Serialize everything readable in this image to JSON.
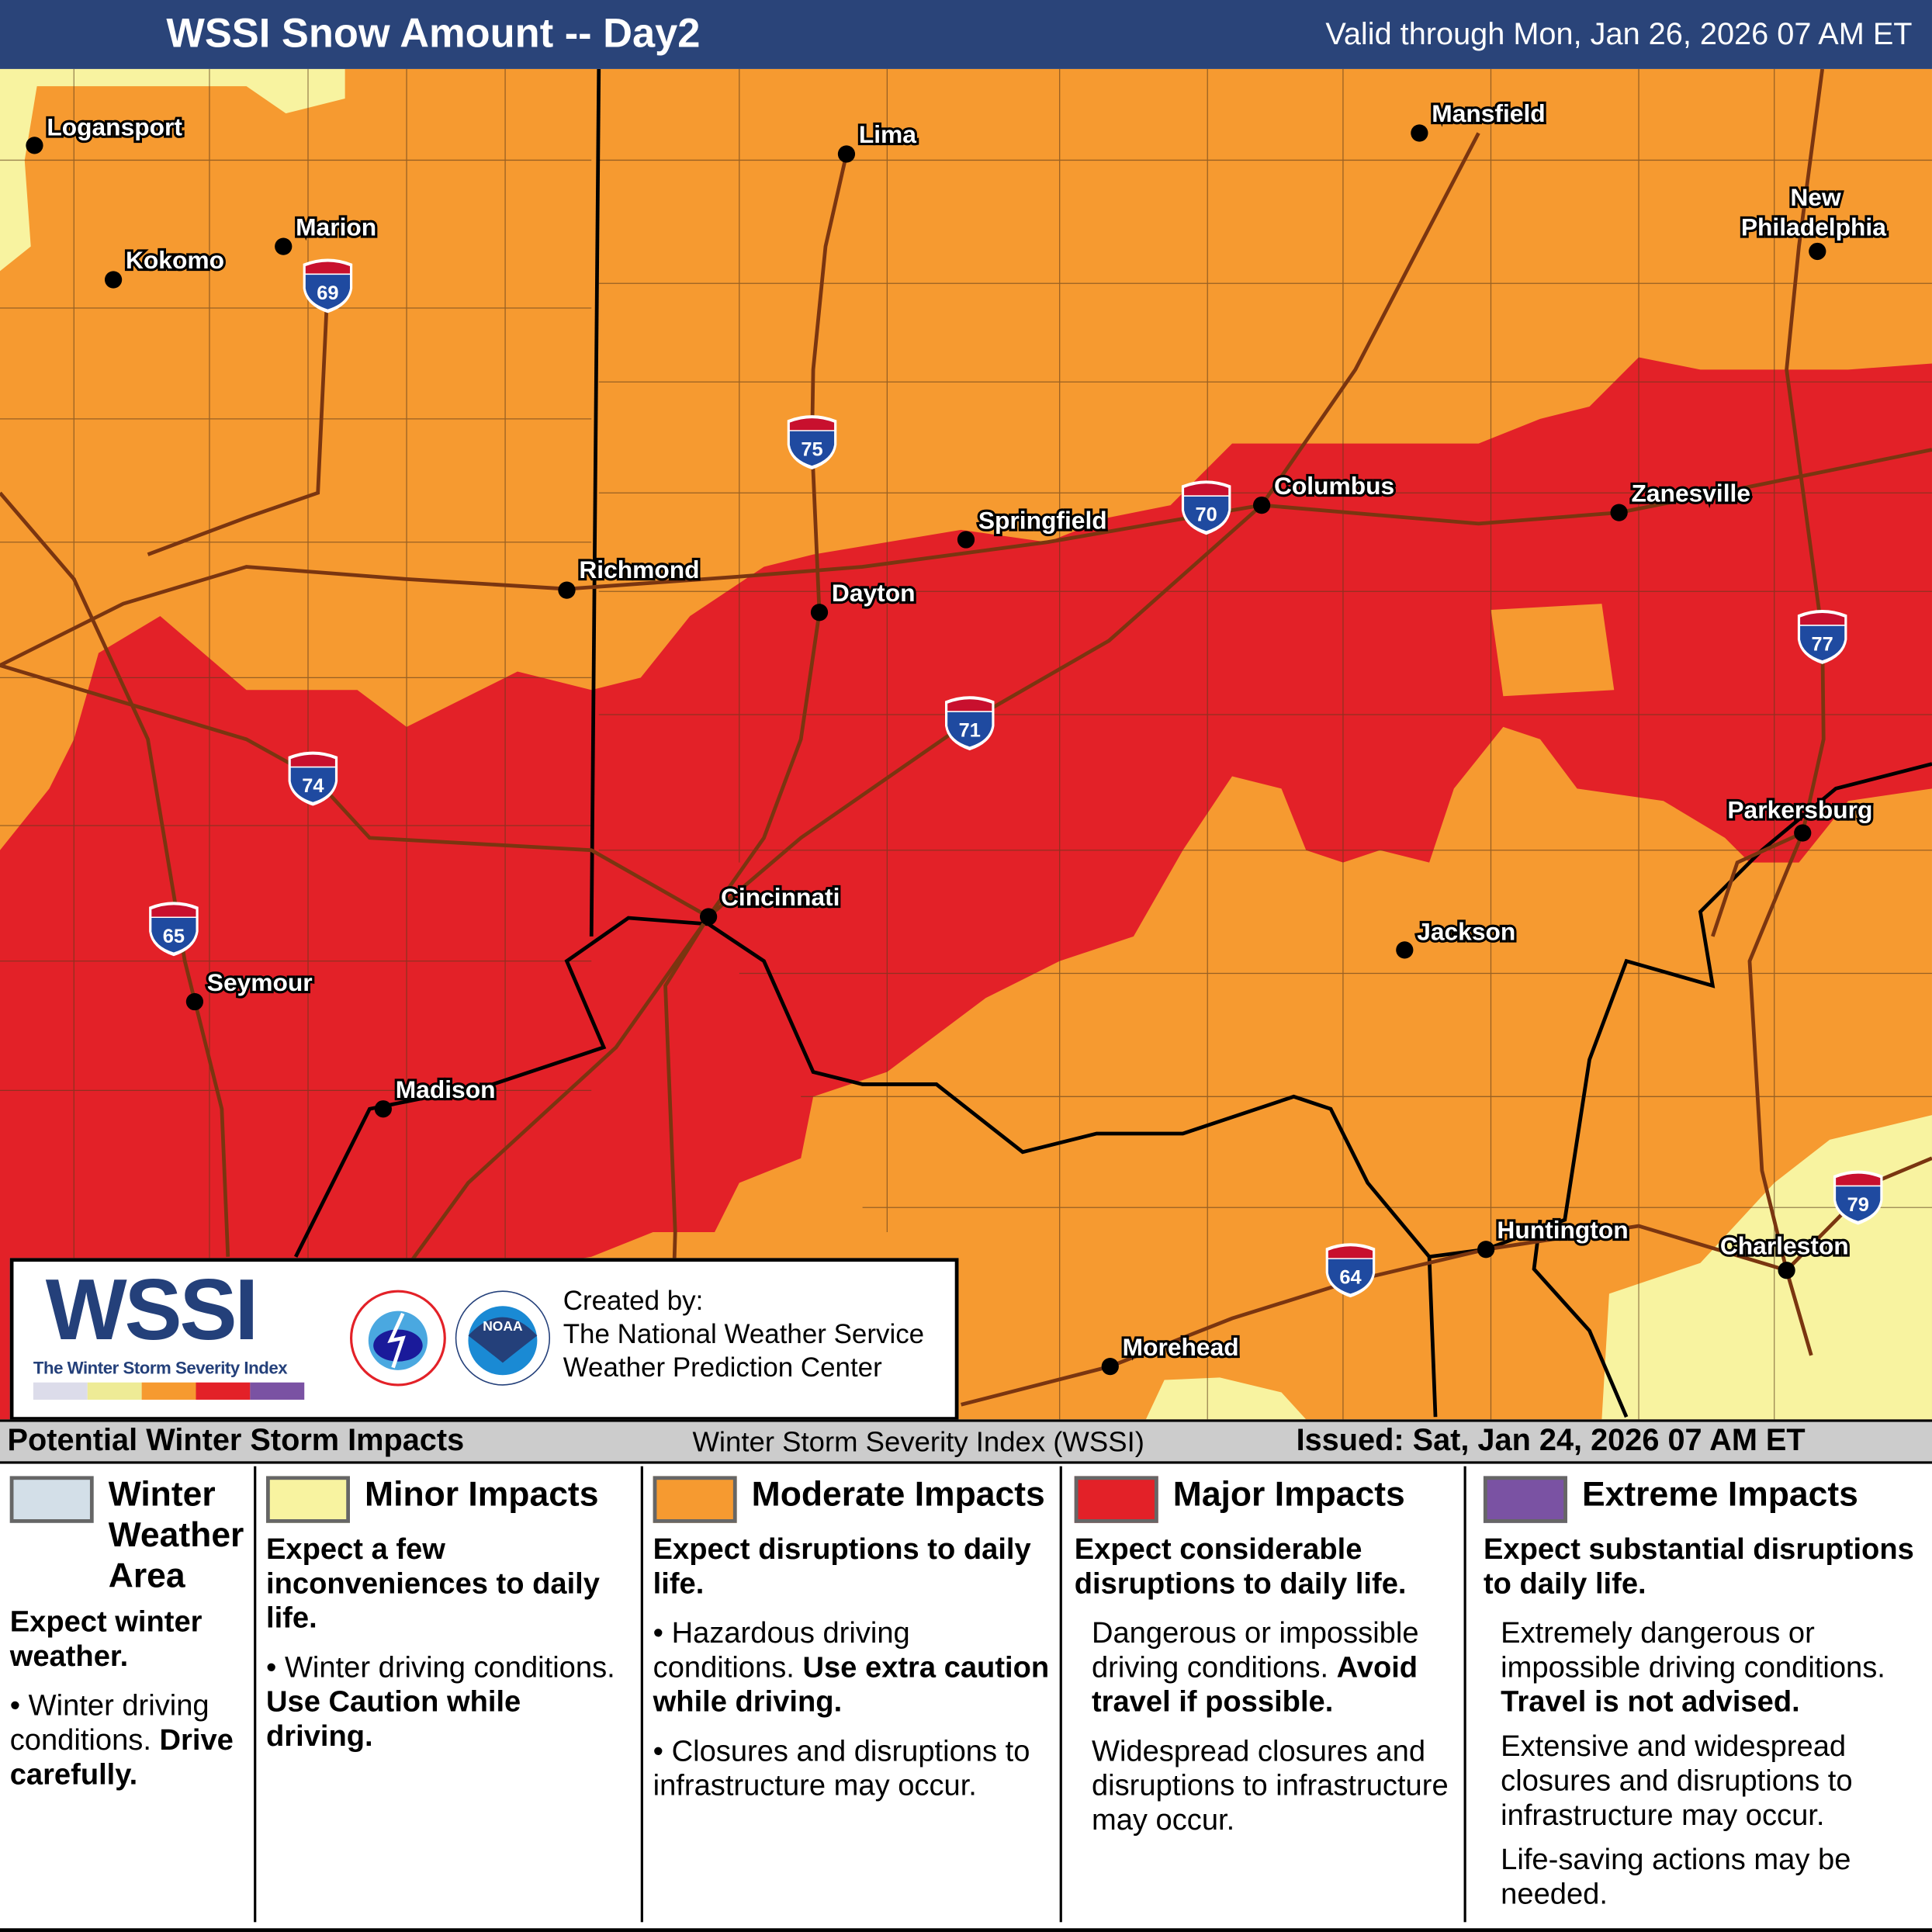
{
  "header": {
    "title": "WSSI Snow Amount -- Day2",
    "valid": "Valid through Mon, Jan 26, 2026 07 AM ET"
  },
  "colors": {
    "winter_weather": "#d3dfe8",
    "minor": "#f8f3a0",
    "moderate": "#f69a30",
    "major": "#e32128",
    "extreme": "#7a52a3",
    "road": "#7a3510",
    "header": "#2a4479"
  },
  "cities": [
    {
      "name": "Logansport"
    },
    {
      "name": "Kokomo"
    },
    {
      "name": "Marion"
    },
    {
      "name": "Lima"
    },
    {
      "name": "Mansfield"
    },
    {
      "name": "New Philadelphia"
    },
    {
      "name": "Columbus"
    },
    {
      "name": "Springfield"
    },
    {
      "name": "Zanesville"
    },
    {
      "name": "Richmond"
    },
    {
      "name": "Dayton"
    },
    {
      "name": "Cincinnati"
    },
    {
      "name": "Parkersburg"
    },
    {
      "name": "Jackson"
    },
    {
      "name": "Seymour"
    },
    {
      "name": "Madison"
    },
    {
      "name": "Huntington"
    },
    {
      "name": "Charleston"
    },
    {
      "name": "Morehead"
    }
  ],
  "interstates": [
    "69",
    "75",
    "70",
    "77",
    "71",
    "74",
    "65",
    "64",
    "79"
  ],
  "logo": {
    "wordmark": "WSSI",
    "tagline": "The Winter Storm Severity Index",
    "nws_seal": "NATIONAL WEATHER SERVICE",
    "noaa_seal": "NOAA",
    "created_by": "Created by:",
    "org1": "The National Weather Service",
    "org2": "Weather Prediction Center"
  },
  "bar": {
    "left": "Potential Winter Storm Impacts",
    "mid": "Winter Storm Severity Index (WSSI)",
    "right": "Issued: Sat, Jan 24, 2026 07 AM ET"
  },
  "legend": {
    "winter": {
      "title": "Winter Weather Area",
      "headline": "Expect winter weather.",
      "b1": "Winter driving conditions.",
      "b1_bold": "Drive carefully."
    },
    "minor": {
      "title": "Minor Impacts",
      "headline": "Expect a few inconveniences to daily life.",
      "b1": "Winter driving conditions.",
      "b1_bold": "Use Caution while driving."
    },
    "moderate": {
      "title": "Moderate Impacts",
      "headline": "Expect disruptions to daily life.",
      "b1": "Hazardous driving conditions.",
      "b1_bold": "Use extra caution while driving.",
      "b2": "Closures and disruptions to infrastructure may occur."
    },
    "major": {
      "title": "Major Impacts",
      "headline": "Expect considerable disruptions to daily life.",
      "p1": "Dangerous or impossible driving conditions.",
      "p1_bold": "Avoid travel if possible.",
      "p2": "Widespread closures and disruptions to infrastructure may occur."
    },
    "extreme": {
      "title": "Extreme Impacts",
      "headline": "Expect substantial disruptions to daily life.",
      "p1": "Extremely dangerous or impossible driving conditions.",
      "p1_bold": "Travel is not advised.",
      "p2": "Extensive and widespread closures and disruptions to infrastructure may occur.",
      "p3": "Life-saving actions may be needed."
    }
  }
}
